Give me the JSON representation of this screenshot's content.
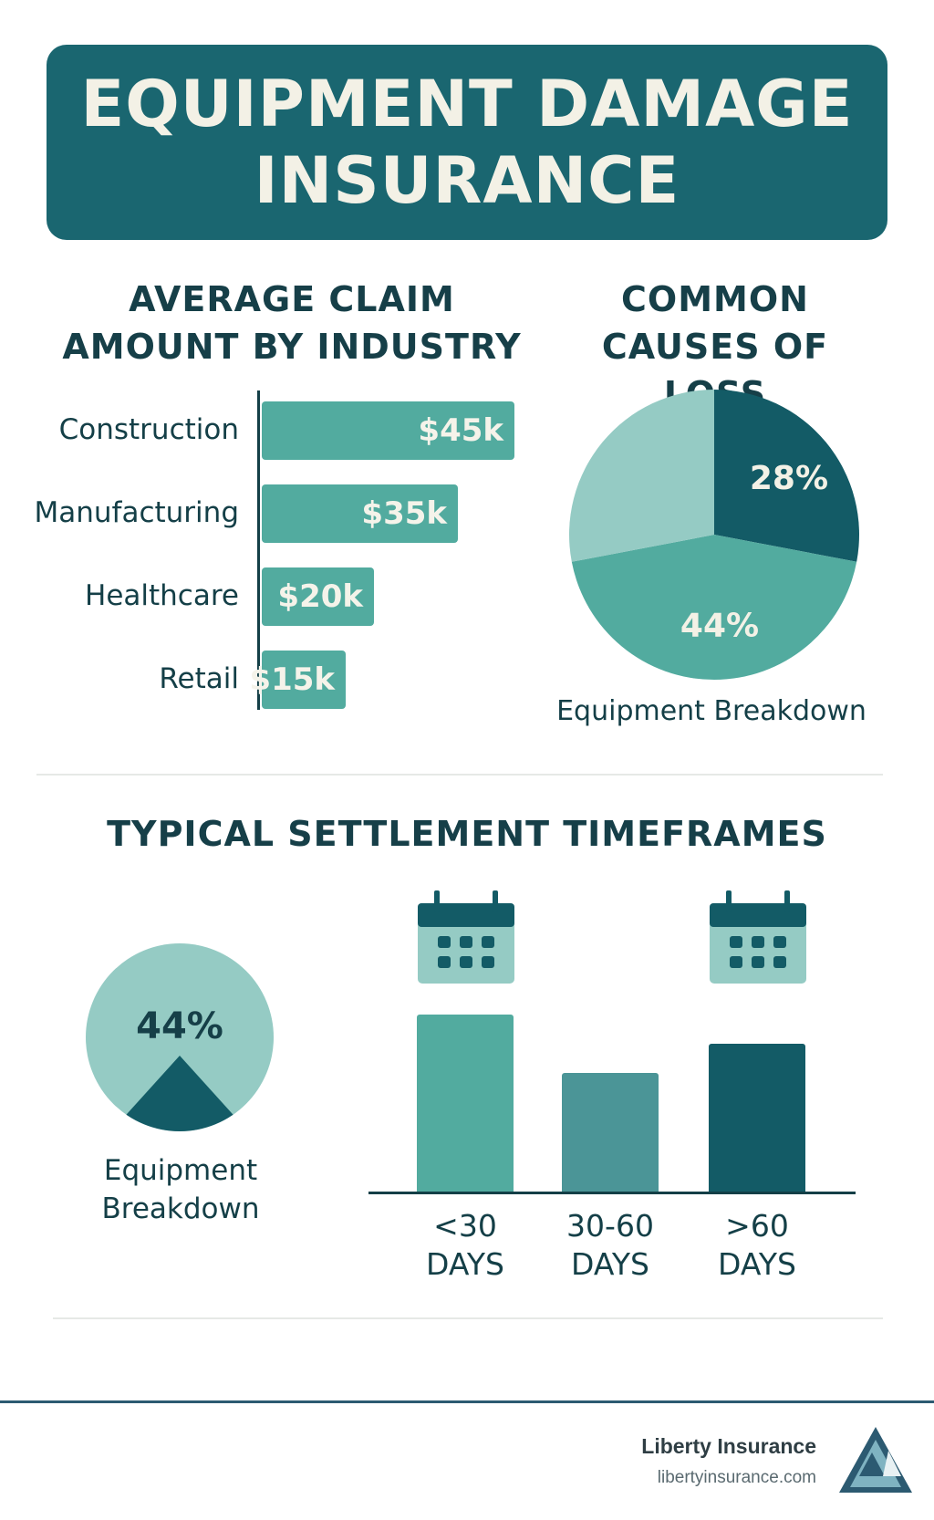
{
  "header": {
    "title_line1": "EQUIPMENT DAMAGE",
    "title_line2": "INSURANCE"
  },
  "claims": {
    "title_line1": "AVERAGE CLAIM",
    "title_line2": "AMOUNT BY INDUSTRY"
  },
  "causes": {
    "title_line1": "COMMON",
    "title_line2": "CAUSES OF LOSS",
    "caption": "Equipment Breakdown"
  },
  "settlement": {
    "title": "TYPICAL SETTLEMENT TIMEFRAMES",
    "mini_pie_label": "44%",
    "caption_line1": "Equipment",
    "caption_line2": "Breakdown"
  },
  "footer": {
    "brand": "Liberty Insurance",
    "url": "libertyinsurance.com"
  },
  "colors": {
    "dark_teal": "#1a6670",
    "deep_teal": "#135b66",
    "mid_teal": "#52ab9f",
    "light_teal": "#95cbc4",
    "slate_teal": "#4b9597"
  },
  "chart_data": [
    {
      "type": "bar",
      "orientation": "horizontal",
      "title": "AVERAGE CLAIM AMOUNT BY INDUSTRY",
      "categories": [
        "Construction",
        "Manufacturing",
        "Healthcare",
        "Retail"
      ],
      "values": [
        45,
        35,
        20,
        15
      ],
      "labels": [
        "$45k",
        "$35k",
        "$20k",
        "$15k"
      ],
      "unit": "$k",
      "xlim": [
        0,
        45
      ]
    },
    {
      "type": "pie",
      "title": "COMMON CAUSES OF LOSS",
      "slices": [
        {
          "label": "28%",
          "value": 28,
          "color": "#135b66"
        },
        {
          "label": "44%",
          "value": 44,
          "color": "#52ab9f"
        },
        {
          "label": "",
          "value": 28,
          "color": "#95cbc4"
        }
      ],
      "caption": "Equipment Breakdown"
    },
    {
      "type": "bar",
      "orientation": "vertical",
      "title": "TYPICAL SETTLEMENT TIMEFRAMES",
      "categories": [
        "<30 DAYS",
        "30-60 DAYS",
        ">60 DAYS"
      ],
      "tick_lines": [
        [
          "<30",
          "DAYS"
        ],
        [
          "30-60",
          "DAYS"
        ],
        [
          ">60",
          "DAYS"
        ]
      ],
      "values": [
        54,
        36,
        45
      ],
      "colors": [
        "#52ab9f",
        "#4b9597",
        "#135b66"
      ],
      "calendar_icons_over": [
        0,
        2
      ]
    }
  ]
}
